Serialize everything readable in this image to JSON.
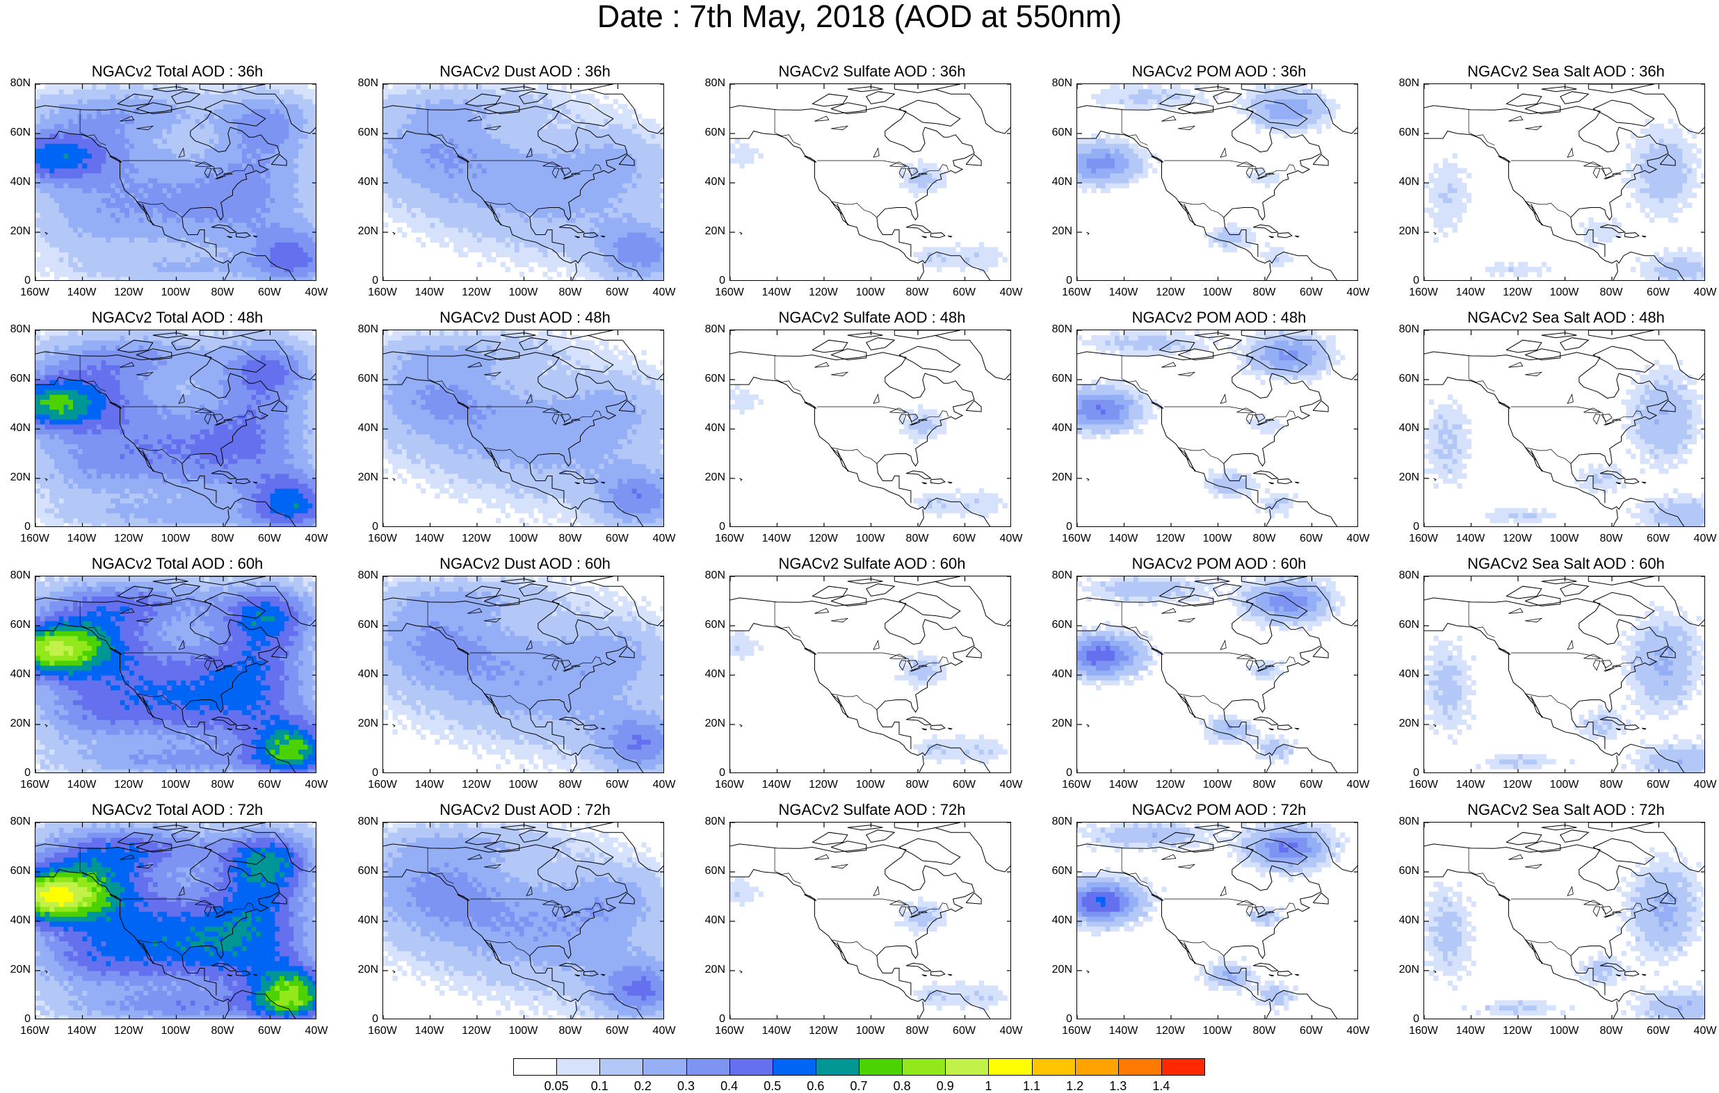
{
  "title": "Date : 7th May, 2018 (AOD at 550nm)",
  "lat_ticks": [
    "80N",
    "60N",
    "40N",
    "20N",
    "0"
  ],
  "lon_ticks": [
    "160W",
    "140W",
    "120W",
    "100W",
    "80W",
    "60W",
    "40W"
  ],
  "rows": [
    {
      "hour": "36h",
      "panels": [
        {
          "title": "NGACv2 Total AOD : 36h",
          "field": "total",
          "intensity": 1.0
        },
        {
          "title": "NGACv2 Dust AOD : 36h",
          "field": "dust",
          "intensity": 1.0
        },
        {
          "title": "NGACv2 Sulfate AOD : 36h",
          "field": "sulfate",
          "intensity": 1.0
        },
        {
          "title": "NGACv2 POM AOD : 36h",
          "field": "pom",
          "intensity": 1.0
        },
        {
          "title": "NGACv2 Sea Salt AOD : 36h",
          "field": "seasalt",
          "intensity": 1.0
        }
      ]
    },
    {
      "hour": "48h",
      "panels": [
        {
          "title": "NGACv2 Total AOD : 48h",
          "field": "total",
          "intensity": 1.25
        },
        {
          "title": "NGACv2 Dust AOD : 48h",
          "field": "dust",
          "intensity": 1.05
        },
        {
          "title": "NGACv2 Sulfate AOD : 48h",
          "field": "sulfate",
          "intensity": 1.0
        },
        {
          "title": "NGACv2 POM AOD : 48h",
          "field": "pom",
          "intensity": 1.15
        },
        {
          "title": "NGACv2 Sea Salt AOD : 48h",
          "field": "seasalt",
          "intensity": 1.2
        }
      ]
    },
    {
      "hour": "60h",
      "panels": [
        {
          "title": "NGACv2 Total AOD : 60h",
          "field": "total",
          "intensity": 1.6
        },
        {
          "title": "NGACv2 Dust AOD : 60h",
          "field": "dust",
          "intensity": 1.1
        },
        {
          "title": "NGACv2 Sulfate AOD : 60h",
          "field": "sulfate",
          "intensity": 1.05
        },
        {
          "title": "NGACv2 POM AOD : 60h",
          "field": "pom",
          "intensity": 1.35
        },
        {
          "title": "NGACv2 Sea Salt AOD : 60h",
          "field": "seasalt",
          "intensity": 1.35
        }
      ]
    },
    {
      "hour": "72h",
      "panels": [
        {
          "title": "NGACv2 Total AOD : 72h",
          "field": "total",
          "intensity": 1.8
        },
        {
          "title": "NGACv2 Dust AOD : 72h",
          "field": "dust",
          "intensity": 1.15
        },
        {
          "title": "NGACv2 Sulfate AOD : 72h",
          "field": "sulfate",
          "intensity": 1.05
        },
        {
          "title": "NGACv2 POM AOD : 72h",
          "field": "pom",
          "intensity": 1.5
        },
        {
          "title": "NGACv2 Sea Salt  AOD : 72h",
          "field": "seasalt",
          "intensity": 1.4
        }
      ]
    }
  ],
  "colorbar": {
    "labels": [
      "0.05",
      "0.1",
      "0.2",
      "0.3",
      "0.4",
      "0.5",
      "0.6",
      "0.7",
      "0.8",
      "0.9",
      "1",
      "1.1",
      "1.2",
      "1.3",
      "1.4"
    ],
    "colors": [
      "#ffffff",
      "#d6e2fb",
      "#b4c8f8",
      "#94aff5",
      "#7d94f2",
      "#6470ee",
      "#0065f5",
      "#009696",
      "#4bd200",
      "#93e81b",
      "#c2f24a",
      "#ffff00",
      "#ffc400",
      "#ffa300",
      "#ff7a00",
      "#ff2800"
    ]
  },
  "map_style": {
    "land_stroke": "#000000"
  }
}
